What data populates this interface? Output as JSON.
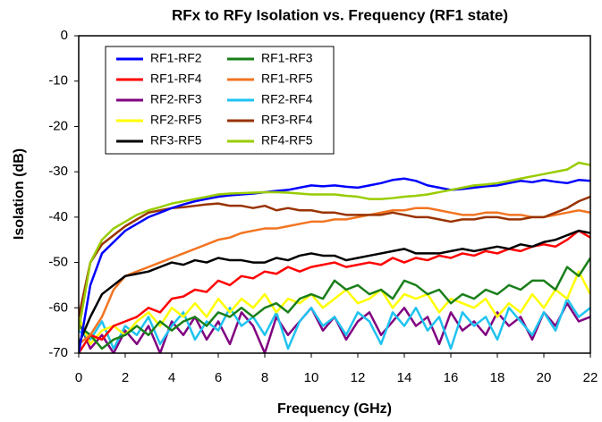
{
  "chart_data": {
    "type": "line",
    "title": "RFx to RFy Isolation vs. Frequency (RF1 state)",
    "x_label": "Frequency (GHz)",
    "y_label": "Isolation (dB)",
    "xlim": [
      0,
      22
    ],
    "xticks": [
      0,
      2,
      4,
      6,
      8,
      10,
      12,
      14,
      16,
      18,
      20,
      22
    ],
    "ylim": [
      -70,
      0
    ],
    "yticks": [
      0,
      -10,
      -20,
      -30,
      -40,
      -50,
      -60,
      -70
    ],
    "legend_position": "upper left",
    "x": [
      0,
      0.5,
      1,
      1.5,
      2,
      2.5,
      3,
      3.5,
      4,
      4.5,
      5,
      5.5,
      6,
      6.5,
      7,
      7.5,
      8,
      8.5,
      9,
      9.5,
      10,
      10.5,
      11,
      11.5,
      12,
      12.5,
      13,
      13.5,
      14,
      14.5,
      15,
      15.5,
      16,
      16.5,
      17,
      17.5,
      18,
      18.5,
      19,
      19.5,
      20,
      20.5,
      21,
      21.5,
      22
    ],
    "series": [
      {
        "name": "RF1-RF2",
        "color": "#0000ff",
        "values": [
          -70,
          -55,
          -48,
          -45.5,
          -43,
          -41.5,
          -40,
          -39,
          -38,
          -37.2,
          -36.5,
          -36,
          -35.5,
          -35.2,
          -35,
          -34.8,
          -34.5,
          -34.2,
          -34,
          -33.5,
          -33,
          -33.2,
          -33,
          -33.3,
          -33.5,
          -33,
          -32.5,
          -31.8,
          -31.5,
          -32,
          -33,
          -33.5,
          -34,
          -33.8,
          -33.5,
          -33.2,
          -33,
          -32.5,
          -32,
          -32.3,
          -31.8,
          -32.2,
          -32.5,
          -31.8,
          -32
        ]
      },
      {
        "name": "RF1-RF3",
        "color": "#1a7f1a",
        "values": [
          -64,
          -66,
          -69,
          -67,
          -66,
          -64,
          -66,
          -63,
          -65,
          -63,
          -62,
          -64,
          -61,
          -62,
          -60,
          -62,
          -60,
          -59,
          -61,
          -58,
          -57,
          -58,
          -54,
          -56,
          -55,
          -57,
          -56,
          -58,
          -54,
          -55,
          -57,
          -56,
          -59,
          -57,
          -58,
          -56,
          -57,
          -55,
          -56,
          -54,
          -54,
          -56,
          -51,
          -53,
          -49
        ]
      },
      {
        "name": "RF1-RF4",
        "color": "#ff0000",
        "values": [
          -70,
          -66,
          -67,
          -64,
          -63,
          -62,
          -60,
          -61,
          -58,
          -57.5,
          -56,
          -56.5,
          -54,
          -55,
          -53,
          -53.5,
          -52,
          -52.5,
          -51,
          -52,
          -51,
          -50.5,
          -50,
          -51,
          -50.5,
          -50,
          -50.5,
          -49,
          -50,
          -49,
          -49.5,
          -48.5,
          -49,
          -48,
          -48.5,
          -47.5,
          -48,
          -47,
          -47.5,
          -46.5,
          -46,
          -46.5,
          -45,
          -43,
          -44.5
        ]
      },
      {
        "name": "RF1-RF5",
        "color": "#f27421",
        "values": [
          -68,
          -66,
          -62,
          -56,
          -53,
          -52,
          -51,
          -50,
          -49,
          -48,
          -47,
          -46,
          -45,
          -44.5,
          -43.5,
          -43,
          -42.5,
          -42.5,
          -42,
          -41.5,
          -41,
          -41,
          -40.5,
          -40.5,
          -40,
          -39.5,
          -39,
          -38.5,
          -38.5,
          -38,
          -38,
          -38.5,
          -39,
          -39.5,
          -39.5,
          -39,
          -39,
          -39.5,
          -39.5,
          -40,
          -40,
          -39.5,
          -39,
          -38.5,
          -39
        ]
      },
      {
        "name": "RF2-RF3",
        "color": "#800080",
        "values": [
          -63,
          -69,
          -66,
          -70,
          -65,
          -68,
          -64,
          -70,
          -63,
          -66,
          -62,
          -67,
          -63,
          -68,
          -61,
          -64,
          -70,
          -62,
          -66,
          -63,
          -60,
          -65,
          -62,
          -67,
          -63,
          -61,
          -66,
          -63,
          -60,
          -64,
          -62,
          -68,
          -61,
          -65,
          -63,
          -66,
          -61,
          -64,
          -62,
          -67,
          -61,
          -64,
          -59,
          -63,
          -62
        ]
      },
      {
        "name": "RF2-RF4",
        "color": "#1ec3f0",
        "values": [
          -65,
          -67,
          -63,
          -69,
          -64,
          -66,
          -62,
          -68,
          -64,
          -61,
          -67,
          -63,
          -65,
          -60,
          -64,
          -62,
          -66,
          -61,
          -69,
          -63,
          -60,
          -64,
          -62,
          -66,
          -61,
          -63,
          -68,
          -61,
          -64,
          -60,
          -65,
          -62,
          -69,
          -61,
          -64,
          -62,
          -67,
          -60,
          -63,
          -66,
          -61,
          -65,
          -58,
          -62,
          -60
        ]
      },
      {
        "name": "RF2-RF5",
        "color": "#ffff00",
        "values": [
          -62,
          -68,
          -65,
          -64,
          -66,
          -63,
          -61,
          -64,
          -60,
          -62,
          -59,
          -62,
          -58,
          -61,
          -58,
          -60,
          -57,
          -61,
          -58,
          -59,
          -57,
          -60,
          -58,
          -56,
          -59,
          -58,
          -56,
          -60,
          -57,
          -58,
          -57,
          -61,
          -58,
          -59,
          -60,
          -58,
          -62,
          -59,
          -61,
          -57,
          -60,
          -56,
          -58,
          -52,
          -57
        ]
      },
      {
        "name": "RF3-RF4",
        "color": "#993300",
        "values": [
          -62,
          -50,
          -46,
          -44,
          -42,
          -40.5,
          -39,
          -38.5,
          -38,
          -37.8,
          -37.5,
          -37.2,
          -37,
          -37.5,
          -37.5,
          -38,
          -37.5,
          -38.5,
          -38,
          -38.5,
          -38.5,
          -39,
          -39,
          -39.5,
          -39.5,
          -39.5,
          -39.5,
          -39,
          -39.5,
          -40,
          -40,
          -40.5,
          -41,
          -40.5,
          -40.5,
          -40,
          -40,
          -40.5,
          -40.5,
          -40,
          -40,
          -39,
          -38,
          -36.5,
          -35.5
        ]
      },
      {
        "name": "RF3-RF5",
        "color": "#000000",
        "values": [
          -68,
          -62,
          -57,
          -55,
          -53,
          -52.5,
          -52,
          -51,
          -50,
          -50.5,
          -49.5,
          -50,
          -49,
          -49.5,
          -49.5,
          -50,
          -50,
          -49,
          -49.5,
          -48.5,
          -48,
          -48.5,
          -48.5,
          -49.5,
          -49,
          -48.5,
          -48,
          -47.5,
          -47,
          -48,
          -48,
          -48,
          -47.5,
          -47,
          -47.5,
          -47,
          -46.5,
          -47,
          -46,
          -46.5,
          -45.5,
          -45,
          -44,
          -43,
          -43.5
        ]
      },
      {
        "name": "RF4-RF5",
        "color": "#99cc00",
        "values": [
          -65,
          -50,
          -45,
          -42.5,
          -41,
          -39.5,
          -38.5,
          -37.8,
          -37,
          -36.5,
          -36,
          -35.5,
          -35,
          -34.8,
          -34.7,
          -34.6,
          -34.5,
          -34.5,
          -34.6,
          -34.8,
          -35,
          -35,
          -35,
          -35.3,
          -35.5,
          -36,
          -36,
          -35.8,
          -35.5,
          -35.3,
          -35,
          -34.5,
          -34,
          -33.5,
          -33,
          -32.8,
          -32.5,
          -32,
          -31.5,
          -31,
          -30.5,
          -30,
          -29.5,
          -28,
          -28.5
        ]
      }
    ]
  }
}
